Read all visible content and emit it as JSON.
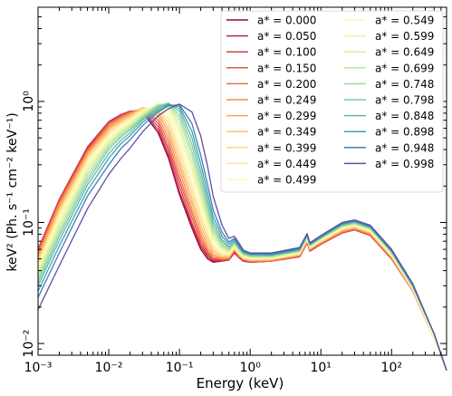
{
  "chart_data": {
    "type": "line",
    "title": "",
    "xlabel": "Energy (keV)",
    "ylabel": "keV² (Ph. s⁻¹ cm⁻² keV⁻¹)",
    "x_scale": "log",
    "y_scale": "log",
    "xlim": [
      0.001,
      600
    ],
    "ylim": [
      0.008,
      6
    ],
    "x_ticks": [
      {
        "value": 0.001,
        "label": "10⁻³"
      },
      {
        "value": 0.01,
        "label": "10⁻²"
      },
      {
        "value": 0.1,
        "label": "10⁻¹"
      },
      {
        "value": 1,
        "label": "10⁰"
      },
      {
        "value": 10,
        "label": "10¹"
      },
      {
        "value": 100,
        "label": "10²"
      }
    ],
    "y_ticks": [
      {
        "value": 0.01,
        "label": "10⁻²"
      },
      {
        "value": 0.1,
        "label": "10⁻¹"
      },
      {
        "value": 1,
        "label": "10⁰"
      }
    ],
    "grid": false,
    "legend_position": "top-right",
    "legend_columns": 2,
    "x": [
      0.001,
      0.002,
      0.005,
      0.01,
      0.015,
      0.02,
      0.03,
      0.05,
      0.07,
      0.1,
      0.15,
      0.2,
      0.25,
      0.3,
      0.4,
      0.5,
      0.6,
      0.7,
      0.8,
      1,
      2,
      5,
      6.4,
      7,
      10,
      20,
      30,
      50,
      100,
      200,
      400,
      600
    ],
    "series": [
      {
        "name": "a* = 0.000",
        "color": "#9e0142",
        "values": [
          0.06,
          0.155,
          0.42,
          0.68,
          0.78,
          0.83,
          0.82,
          0.55,
          0.34,
          0.17,
          0.09,
          0.06,
          0.05,
          0.047,
          0.048,
          0.049,
          0.056,
          0.051,
          0.048,
          0.047,
          0.048,
          0.052,
          0.068,
          0.058,
          0.066,
          0.082,
          0.087,
          0.078,
          0.05,
          0.027,
          0.011,
          0.006
        ]
      },
      {
        "name": "a* = 0.050",
        "color": "#c0234a",
        "values": [
          0.06,
          0.155,
          0.42,
          0.68,
          0.78,
          0.83,
          0.83,
          0.58,
          0.36,
          0.18,
          0.095,
          0.063,
          0.052,
          0.048,
          0.048,
          0.049,
          0.057,
          0.051,
          0.048,
          0.047,
          0.048,
          0.052,
          0.068,
          0.058,
          0.066,
          0.082,
          0.087,
          0.078,
          0.05,
          0.027,
          0.011,
          0.006
        ]
      },
      {
        "name": "a* = 0.100",
        "color": "#d6404e",
        "values": [
          0.059,
          0.153,
          0.41,
          0.67,
          0.77,
          0.83,
          0.84,
          0.62,
          0.39,
          0.2,
          0.1,
          0.066,
          0.054,
          0.049,
          0.049,
          0.05,
          0.058,
          0.052,
          0.049,
          0.047,
          0.048,
          0.052,
          0.068,
          0.058,
          0.066,
          0.082,
          0.087,
          0.078,
          0.05,
          0.027,
          0.011,
          0.006
        ]
      },
      {
        "name": "a* = 0.150",
        "color": "#e55749",
        "values": [
          0.058,
          0.15,
          0.4,
          0.66,
          0.76,
          0.82,
          0.86,
          0.66,
          0.42,
          0.22,
          0.11,
          0.07,
          0.056,
          0.05,
          0.049,
          0.05,
          0.058,
          0.052,
          0.049,
          0.048,
          0.048,
          0.053,
          0.069,
          0.059,
          0.067,
          0.083,
          0.088,
          0.079,
          0.051,
          0.027,
          0.011,
          0.006
        ]
      },
      {
        "name": "a* = 0.200",
        "color": "#f16e43",
        "values": [
          0.056,
          0.146,
          0.39,
          0.64,
          0.75,
          0.81,
          0.87,
          0.7,
          0.46,
          0.24,
          0.12,
          0.075,
          0.058,
          0.051,
          0.05,
          0.05,
          0.059,
          0.052,
          0.049,
          0.048,
          0.048,
          0.053,
          0.069,
          0.059,
          0.067,
          0.083,
          0.088,
          0.079,
          0.051,
          0.027,
          0.011,
          0.006
        ]
      },
      {
        "name": "a* = 0.249",
        "color": "#f88c51",
        "values": [
          0.054,
          0.141,
          0.38,
          0.62,
          0.73,
          0.8,
          0.88,
          0.75,
          0.5,
          0.27,
          0.13,
          0.08,
          0.061,
          0.053,
          0.05,
          0.051,
          0.059,
          0.053,
          0.05,
          0.048,
          0.049,
          0.053,
          0.07,
          0.06,
          0.068,
          0.084,
          0.089,
          0.08,
          0.051,
          0.027,
          0.011,
          0.006
        ]
      },
      {
        "name": "a* = 0.299",
        "color": "#fba35e",
        "values": [
          0.052,
          0.136,
          0.37,
          0.6,
          0.71,
          0.78,
          0.89,
          0.8,
          0.55,
          0.3,
          0.145,
          0.087,
          0.065,
          0.055,
          0.051,
          0.051,
          0.06,
          0.053,
          0.05,
          0.048,
          0.049,
          0.054,
          0.07,
          0.06,
          0.068,
          0.085,
          0.09,
          0.081,
          0.052,
          0.027,
          0.011,
          0.006
        ]
      },
      {
        "name": "a* = 0.349",
        "color": "#fdbe70",
        "values": [
          0.05,
          0.13,
          0.355,
          0.58,
          0.69,
          0.76,
          0.89,
          0.84,
          0.6,
          0.33,
          0.16,
          0.095,
          0.07,
          0.058,
          0.052,
          0.052,
          0.06,
          0.054,
          0.05,
          0.049,
          0.049,
          0.054,
          0.071,
          0.061,
          0.069,
          0.086,
          0.091,
          0.082,
          0.052,
          0.028,
          0.011,
          0.006
        ]
      },
      {
        "name": "a* = 0.399",
        "color": "#fed683",
        "values": [
          0.048,
          0.124,
          0.34,
          0.56,
          0.67,
          0.74,
          0.88,
          0.88,
          0.66,
          0.37,
          0.18,
          0.105,
          0.075,
          0.06,
          0.053,
          0.053,
          0.061,
          0.055,
          0.051,
          0.049,
          0.05,
          0.055,
          0.072,
          0.061,
          0.07,
          0.087,
          0.092,
          0.083,
          0.053,
          0.028,
          0.011,
          0.006
        ]
      },
      {
        "name": "a* = 0.449",
        "color": "#feea9b",
        "values": [
          0.046,
          0.118,
          0.325,
          0.54,
          0.65,
          0.72,
          0.86,
          0.91,
          0.72,
          0.41,
          0.2,
          0.115,
          0.08,
          0.063,
          0.055,
          0.054,
          0.062,
          0.055,
          0.051,
          0.05,
          0.05,
          0.055,
          0.072,
          0.062,
          0.07,
          0.088,
          0.093,
          0.084,
          0.053,
          0.028,
          0.011,
          0.006
        ]
      },
      {
        "name": "a* = 0.499",
        "color": "#fff8b4",
        "values": [
          0.044,
          0.112,
          0.31,
          0.52,
          0.63,
          0.7,
          0.84,
          0.93,
          0.78,
          0.46,
          0.22,
          0.125,
          0.086,
          0.066,
          0.056,
          0.055,
          0.063,
          0.056,
          0.052,
          0.05,
          0.05,
          0.056,
          0.073,
          0.062,
          0.071,
          0.089,
          0.094,
          0.085,
          0.054,
          0.028,
          0.011,
          0.006
        ]
      },
      {
        "name": "a* = 0.549",
        "color": "#f8fcb4",
        "values": [
          0.042,
          0.106,
          0.295,
          0.5,
          0.61,
          0.68,
          0.82,
          0.94,
          0.84,
          0.51,
          0.25,
          0.14,
          0.093,
          0.07,
          0.058,
          0.056,
          0.064,
          0.057,
          0.052,
          0.051,
          0.051,
          0.056,
          0.074,
          0.063,
          0.072,
          0.09,
          0.095,
          0.086,
          0.055,
          0.029,
          0.011,
          0.006
        ]
      },
      {
        "name": "a* = 0.599",
        "color": "#eaf69e",
        "values": [
          0.04,
          0.1,
          0.28,
          0.48,
          0.59,
          0.66,
          0.8,
          0.95,
          0.89,
          0.57,
          0.28,
          0.155,
          0.1,
          0.074,
          0.06,
          0.057,
          0.065,
          0.058,
          0.053,
          0.051,
          0.051,
          0.057,
          0.075,
          0.063,
          0.072,
          0.091,
          0.096,
          0.087,
          0.055,
          0.029,
          0.012,
          0.006
        ]
      },
      {
        "name": "a* = 0.649",
        "color": "#d6ee9b",
        "values": [
          0.038,
          0.094,
          0.265,
          0.46,
          0.57,
          0.64,
          0.78,
          0.95,
          0.93,
          0.63,
          0.31,
          0.17,
          0.108,
          0.078,
          0.062,
          0.058,
          0.066,
          0.058,
          0.054,
          0.052,
          0.052,
          0.057,
          0.075,
          0.064,
          0.073,
          0.092,
          0.097,
          0.088,
          0.056,
          0.029,
          0.012,
          0.006
        ]
      },
      {
        "name": "a* = 0.699",
        "color": "#bbe4a0",
        "values": [
          0.036,
          0.088,
          0.25,
          0.44,
          0.55,
          0.62,
          0.76,
          0.94,
          0.96,
          0.7,
          0.35,
          0.19,
          0.117,
          0.083,
          0.064,
          0.059,
          0.067,
          0.059,
          0.054,
          0.052,
          0.052,
          0.058,
          0.076,
          0.064,
          0.074,
          0.093,
          0.098,
          0.089,
          0.056,
          0.029,
          0.012,
          0.006
        ]
      },
      {
        "name": "a* = 0.748",
        "color": "#9cd7a4",
        "values": [
          0.034,
          0.082,
          0.235,
          0.42,
          0.53,
          0.6,
          0.74,
          0.92,
          0.97,
          0.76,
          0.39,
          0.21,
          0.127,
          0.088,
          0.066,
          0.06,
          0.068,
          0.06,
          0.055,
          0.053,
          0.053,
          0.058,
          0.077,
          0.065,
          0.074,
          0.094,
          0.099,
          0.09,
          0.057,
          0.03,
          0.012,
          0.006
        ]
      },
      {
        "name": "a* = 0.798",
        "color": "#7ccaa5",
        "values": [
          0.032,
          0.077,
          0.22,
          0.4,
          0.51,
          0.58,
          0.72,
          0.9,
          0.97,
          0.82,
          0.44,
          0.235,
          0.14,
          0.094,
          0.069,
          0.062,
          0.069,
          0.061,
          0.056,
          0.053,
          0.053,
          0.059,
          0.078,
          0.065,
          0.075,
          0.095,
          0.1,
          0.09,
          0.057,
          0.03,
          0.012,
          0.006
        ]
      },
      {
        "name": "a* = 0.848",
        "color": "#5fb9a9",
        "values": [
          0.03,
          0.071,
          0.205,
          0.37,
          0.48,
          0.55,
          0.7,
          0.88,
          0.96,
          0.87,
          0.5,
          0.265,
          0.155,
          0.102,
          0.072,
          0.063,
          0.07,
          0.062,
          0.056,
          0.054,
          0.054,
          0.059,
          0.078,
          0.066,
          0.075,
          0.096,
          0.101,
          0.091,
          0.058,
          0.03,
          0.012,
          0.006
        ]
      },
      {
        "name": "a* = 0.898",
        "color": "#439fb3",
        "values": [
          0.027,
          0.064,
          0.185,
          0.34,
          0.45,
          0.52,
          0.67,
          0.85,
          0.94,
          0.91,
          0.57,
          0.305,
          0.175,
          0.112,
          0.077,
          0.066,
          0.072,
          0.063,
          0.057,
          0.055,
          0.054,
          0.06,
          0.079,
          0.066,
          0.076,
          0.097,
          0.102,
          0.092,
          0.058,
          0.03,
          0.012,
          0.006
        ]
      },
      {
        "name": "a* = 0.948",
        "color": "#3e7fb8",
        "values": [
          0.024,
          0.056,
          0.165,
          0.3,
          0.41,
          0.48,
          0.63,
          0.82,
          0.92,
          0.94,
          0.66,
          0.36,
          0.205,
          0.127,
          0.083,
          0.069,
          0.074,
          0.065,
          0.058,
          0.055,
          0.055,
          0.061,
          0.08,
          0.067,
          0.077,
          0.098,
          0.103,
          0.093,
          0.059,
          0.031,
          0.012,
          0.006
        ]
      },
      {
        "name": "a* = 0.998",
        "color": "#5e4fa2",
        "values": [
          0.019,
          0.044,
          0.13,
          0.25,
          0.34,
          0.41,
          0.56,
          0.76,
          0.87,
          0.95,
          0.82,
          0.52,
          0.29,
          0.165,
          0.095,
          0.074,
          0.077,
          0.067,
          0.059,
          0.056,
          0.056,
          0.062,
          0.081,
          0.068,
          0.078,
          0.1,
          0.105,
          0.095,
          0.06,
          0.031,
          0.012,
          0.006
        ]
      }
    ]
  }
}
